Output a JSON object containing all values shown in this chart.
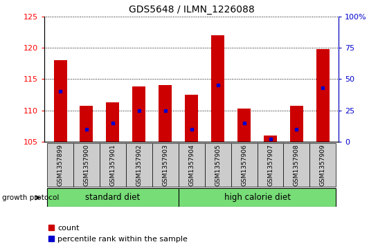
{
  "title": "GDS5648 / ILMN_1226088",
  "samples": [
    "GSM1357899",
    "GSM1357900",
    "GSM1357901",
    "GSM1357902",
    "GSM1357903",
    "GSM1357904",
    "GSM1357905",
    "GSM1357906",
    "GSM1357907",
    "GSM1357908",
    "GSM1357909"
  ],
  "count_values": [
    118.0,
    110.7,
    111.3,
    113.8,
    114.0,
    112.5,
    122.0,
    110.3,
    106.0,
    110.7,
    119.8
  ],
  "percentile_values": [
    40,
    10,
    15,
    25,
    25,
    10,
    45,
    15,
    2,
    10,
    43
  ],
  "y_min": 105,
  "y_max": 125,
  "y_ticks": [
    105,
    110,
    115,
    120,
    125
  ],
  "y2_ticks": [
    0,
    25,
    50,
    75,
    100
  ],
  "y2_tick_labels": [
    "0",
    "25",
    "50",
    "75",
    "100%"
  ],
  "bar_color": "#cc0000",
  "dot_color": "#0000cc",
  "grid_color": "#000000",
  "standard_diet_label": "standard diet",
  "high_calorie_diet_label": "high calorie diet",
  "growth_protocol_label": "growth protocol",
  "standard_diet_indices": [
    0,
    1,
    2,
    3,
    4
  ],
  "high_calorie_diet_indices": [
    5,
    6,
    7,
    8,
    9,
    10
  ],
  "legend_count_label": "count",
  "legend_percentile_label": "percentile rank within the sample",
  "tick_label_bg": "#cccccc",
  "diet_bg": "#77dd77",
  "bar_bottom": 105,
  "figwidth": 5.59,
  "figheight": 3.63,
  "dpi": 100
}
